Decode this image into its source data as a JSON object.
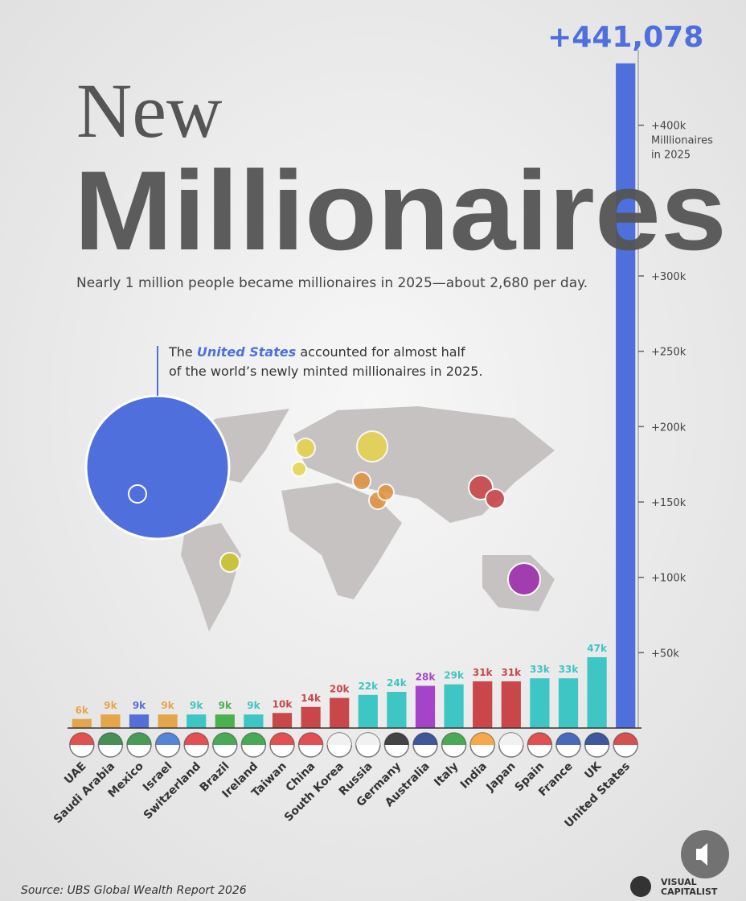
{
  "chart_data": {
    "type": "bar",
    "title_line1": "New",
    "title_line2": "Millionaires",
    "subtitle": "Nearly 1 million people became millionaires in 2025—about 2,680 per day.",
    "annotation": {
      "parts": [
        "The",
        "United States",
        "accounted for almost half"
      ],
      "line2": "of the world’s newly minted millionaires in 2025."
    },
    "axis_note": [
      "Milllionaires",
      "in 2025"
    ],
    "categories": [
      "UAE",
      "Saudi Arabia",
      "Mexico",
      "Israel",
      "Switzerland",
      "Brazil",
      "Ireland",
      "Taiwan",
      "China",
      "South Korea",
      "Russia",
      "Germany",
      "Australia",
      "Italy",
      "India",
      "Japan",
      "Spain",
      "France",
      "UK",
      "United States"
    ],
    "values": [
      6000,
      9000,
      9000,
      9000,
      9000,
      9000,
      9000,
      10000,
      14000,
      20000,
      22000,
      24000,
      28000,
      29000,
      31000,
      31000,
      33000,
      33000,
      47000,
      441078
    ],
    "value_labels": [
      "6k",
      "9k",
      "9k",
      "9k",
      "9k",
      "9k",
      "9k",
      "10k",
      "14k",
      "20k",
      "22k",
      "24k",
      "28k",
      "29k",
      "31k",
      "31k",
      "33k",
      "33k",
      "47k",
      "+441,078"
    ],
    "colors": [
      "#e3a64a",
      "#e3a64a",
      "#5470d8",
      "#e3a64a",
      "#3ec6c4",
      "#4caf50",
      "#3ec6c4",
      "#c9474b",
      "#c9474b",
      "#c9474b",
      "#3ec6c4",
      "#3ec6c4",
      "#a544c8",
      "#3ec6c4",
      "#c9474b",
      "#c9474b",
      "#3ec6c4",
      "#3ec6c4",
      "#3ec6c4",
      "#4f6fdc"
    ],
    "ylim": [
      0,
      450000
    ],
    "yticks": [
      {
        "value": 50000,
        "label": "+50k"
      },
      {
        "value": 100000,
        "label": "+100k"
      },
      {
        "value": 150000,
        "label": "+150k"
      },
      {
        "value": 200000,
        "label": "+200k"
      },
      {
        "value": 250000,
        "label": "+250k"
      },
      {
        "value": 300000,
        "label": "+300k"
      },
      {
        "value": 400000,
        "label": "+400k"
      }
    ],
    "source": "Source: UBS Global Wealth Report 2026",
    "brand": [
      "VISUAL",
      "CAPITALIST"
    ]
  }
}
